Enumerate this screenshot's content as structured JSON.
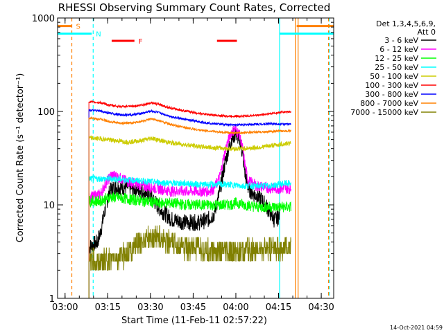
{
  "chart_data": {
    "type": "line",
    "title": "RHESSI Observing Summary Count Rates, Corrected",
    "xlabel": "Start Time (11-Feb-11 02:57:22)",
    "ylabel": "Corrected Count Rate (s⁻¹ detector⁻¹)",
    "x_unit": "minutes since 02:57:22",
    "xlim": [
      0,
      97
    ],
    "yscale": "log",
    "ylim": [
      1,
      1000
    ],
    "x_ticks": [
      {
        "label": "03:00",
        "x": 2.63
      },
      {
        "label": "03:15",
        "x": 17.63
      },
      {
        "label": "03:30",
        "x": 32.63
      },
      {
        "label": "03:45",
        "x": 47.63
      },
      {
        "label": "04:00",
        "x": 62.63
      },
      {
        "label": "04:15",
        "x": 77.63
      },
      {
        "label": "04:30",
        "x": 92.63
      }
    ],
    "y_ticks": [
      {
        "label": "1",
        "y": 1
      },
      {
        "label": "10",
        "y": 10
      },
      {
        "label": "100",
        "y": 100
      },
      {
        "label": "1000",
        "y": 1000
      }
    ],
    "legend_header": [
      "Det 1,3,4,5,6,9,",
      "Att 0"
    ],
    "legend_position": "right",
    "series": [
      {
        "name": "3 - 6 keV",
        "color": "#000000",
        "points": [
          [
            11,
            3.5
          ],
          [
            14,
            4
          ],
          [
            15,
            5
          ],
          [
            16,
            7
          ],
          [
            17,
            10
          ],
          [
            18,
            13
          ],
          [
            19,
            15
          ],
          [
            21,
            15.5
          ],
          [
            24,
            15.5
          ],
          [
            27,
            15
          ],
          [
            30,
            14
          ],
          [
            33,
            12
          ],
          [
            36,
            9
          ],
          [
            40,
            7
          ],
          [
            45,
            6.5
          ],
          [
            50,
            6.5
          ],
          [
            53,
            7
          ],
          [
            55,
            8
          ],
          [
            57,
            14
          ],
          [
            59,
            30
          ],
          [
            61,
            50
          ],
          [
            62.5,
            58
          ],
          [
            64,
            50
          ],
          [
            65,
            35
          ],
          [
            66,
            20
          ],
          [
            67,
            15
          ],
          [
            69,
            13
          ],
          [
            71,
            12
          ],
          [
            73,
            10
          ],
          [
            75,
            8
          ],
          [
            76,
            7
          ],
          [
            77,
            7
          ],
          [
            78,
            8
          ]
        ]
      },
      {
        "name": "6 - 12 keV",
        "color": "#ff00ff",
        "points": [
          [
            11,
            12
          ],
          [
            15,
            13
          ],
          [
            17,
            17
          ],
          [
            19,
            21
          ],
          [
            21,
            20
          ],
          [
            24,
            18
          ],
          [
            27,
            17
          ],
          [
            30,
            16
          ],
          [
            35,
            15
          ],
          [
            40,
            14
          ],
          [
            45,
            14
          ],
          [
            50,
            14
          ],
          [
            53,
            14
          ],
          [
            55,
            15
          ],
          [
            57,
            20
          ],
          [
            59,
            40
          ],
          [
            61,
            60
          ],
          [
            62.5,
            65
          ],
          [
            64,
            55
          ],
          [
            65,
            40
          ],
          [
            66,
            25
          ],
          [
            67,
            18
          ],
          [
            70,
            16
          ],
          [
            75,
            15
          ],
          [
            80,
            15
          ],
          [
            82,
            15
          ]
        ]
      },
      {
        "name": "12 - 25 keV",
        "color": "#00ff00",
        "points": [
          [
            11,
            11
          ],
          [
            15,
            11
          ],
          [
            18,
            12
          ],
          [
            21,
            12
          ],
          [
            25,
            11.5
          ],
          [
            30,
            11
          ],
          [
            35,
            10.5
          ],
          [
            40,
            10.5
          ],
          [
            45,
            10
          ],
          [
            50,
            10
          ],
          [
            55,
            10
          ],
          [
            60,
            10
          ],
          [
            63,
            10.5
          ],
          [
            66,
            10
          ],
          [
            70,
            9.5
          ],
          [
            75,
            9.5
          ],
          [
            80,
            9.5
          ],
          [
            82,
            9.5
          ]
        ]
      },
      {
        "name": "25 - 50 keV",
        "color": "#00ffff",
        "points": [
          [
            11,
            19
          ],
          [
            15,
            19
          ],
          [
            20,
            19
          ],
          [
            25,
            18.5
          ],
          [
            30,
            18
          ],
          [
            35,
            17.5
          ],
          [
            40,
            17
          ],
          [
            45,
            17
          ],
          [
            50,
            16.5
          ],
          [
            55,
            16.5
          ],
          [
            60,
            16.5
          ],
          [
            65,
            16
          ],
          [
            70,
            16
          ],
          [
            75,
            16
          ],
          [
            80,
            17
          ],
          [
            82,
            17
          ]
        ]
      },
      {
        "name": "50 - 100 keV",
        "color": "#cccc00",
        "points": [
          [
            11,
            52
          ],
          [
            15,
            51
          ],
          [
            20,
            49
          ],
          [
            25,
            47
          ],
          [
            30,
            49
          ],
          [
            33,
            52
          ],
          [
            36,
            49
          ],
          [
            40,
            46
          ],
          [
            45,
            44
          ],
          [
            50,
            42
          ],
          [
            55,
            41
          ],
          [
            60,
            40
          ],
          [
            65,
            40
          ],
          [
            70,
            41
          ],
          [
            75,
            43
          ],
          [
            80,
            45
          ],
          [
            82,
            46
          ]
        ]
      },
      {
        "name": "100 - 300 keV",
        "color": "#ff0000",
        "points": [
          [
            11,
            127
          ],
          [
            15,
            124
          ],
          [
            18,
            117
          ],
          [
            22,
            113
          ],
          [
            26,
            113
          ],
          [
            30,
            118
          ],
          [
            33,
            124
          ],
          [
            36,
            118
          ],
          [
            40,
            108
          ],
          [
            45,
            101
          ],
          [
            50,
            95
          ],
          [
            55,
            91
          ],
          [
            60,
            89
          ],
          [
            65,
            89
          ],
          [
            70,
            91
          ],
          [
            75,
            95
          ],
          [
            80,
            99
          ],
          [
            82,
            100
          ]
        ]
      },
      {
        "name": "300 - 800 keV",
        "color": "#0000ff",
        "points": [
          [
            11,
            103
          ],
          [
            15,
            101
          ],
          [
            18,
            96
          ],
          [
            22,
            92
          ],
          [
            26,
            92
          ],
          [
            30,
            96
          ],
          [
            33,
            101
          ],
          [
            36,
            96
          ],
          [
            40,
            88
          ],
          [
            45,
            82
          ],
          [
            50,
            77
          ],
          [
            55,
            74
          ],
          [
            60,
            72
          ],
          [
            65,
            72
          ],
          [
            70,
            73
          ],
          [
            75,
            74
          ],
          [
            80,
            73
          ],
          [
            82,
            73
          ]
        ]
      },
      {
        "name": "800 - 7000 keV",
        "color": "#ff8000",
        "points": [
          [
            11,
            85
          ],
          [
            15,
            83
          ],
          [
            18,
            78
          ],
          [
            22,
            75
          ],
          [
            26,
            75
          ],
          [
            30,
            79
          ],
          [
            33,
            83
          ],
          [
            36,
            79
          ],
          [
            40,
            72
          ],
          [
            45,
            67
          ],
          [
            50,
            63
          ],
          [
            55,
            61
          ],
          [
            60,
            59
          ],
          [
            65,
            59
          ],
          [
            70,
            60
          ],
          [
            75,
            61
          ],
          [
            80,
            62
          ],
          [
            82,
            62
          ]
        ]
      },
      {
        "name": "7000 - 15000 keV",
        "color": "#808000",
        "points": [
          [
            11,
            2.5
          ],
          [
            15,
            2.5
          ],
          [
            20,
            2.6
          ],
          [
            24,
            3
          ],
          [
            28,
            3.8
          ],
          [
            32,
            4.5
          ],
          [
            35,
            4.7
          ],
          [
            38,
            4.2
          ],
          [
            42,
            3.7
          ],
          [
            48,
            3.4
          ],
          [
            55,
            3.2
          ],
          [
            60,
            3.1
          ],
          [
            65,
            3.2
          ],
          [
            70,
            3.3
          ],
          [
            75,
            3.4
          ],
          [
            80,
            3.5
          ],
          [
            82,
            3.5
          ]
        ]
      }
    ],
    "flags": [
      {
        "label": "S",
        "color": "#ff8000",
        "segments": [
          [
            0,
            5
          ],
          [
            84,
            97
          ]
        ],
        "y": 820
      },
      {
        "label": "N",
        "color": "#00ffff",
        "segments": [
          [
            0,
            12
          ],
          [
            78,
            97
          ]
        ],
        "y": 680
      },
      {
        "label": "F",
        "color": "#ff0000",
        "segments": [
          [
            19,
            27
          ],
          [
            56,
            63
          ]
        ],
        "y": 570
      }
    ],
    "vertical_lines": [
      {
        "x": 5,
        "color": "#ff8000",
        "style": "dashed"
      },
      {
        "x": 12.5,
        "color": "#00ffff",
        "style": "dashed"
      },
      {
        "x": 78,
        "color": "#00ffff",
        "style": "solid"
      },
      {
        "x": 84.5,
        "color": "#ff8000",
        "style": "solid"
      },
      {
        "x": 83.5,
        "color": "#ff8000",
        "style": "solid"
      },
      {
        "x": 95.5,
        "color": "#00ffff",
        "style": "dashed"
      },
      {
        "x": 95.2,
        "color": "#ff8000",
        "style": "dashed"
      }
    ],
    "footer_date": "14-Oct-2021 04:59"
  }
}
